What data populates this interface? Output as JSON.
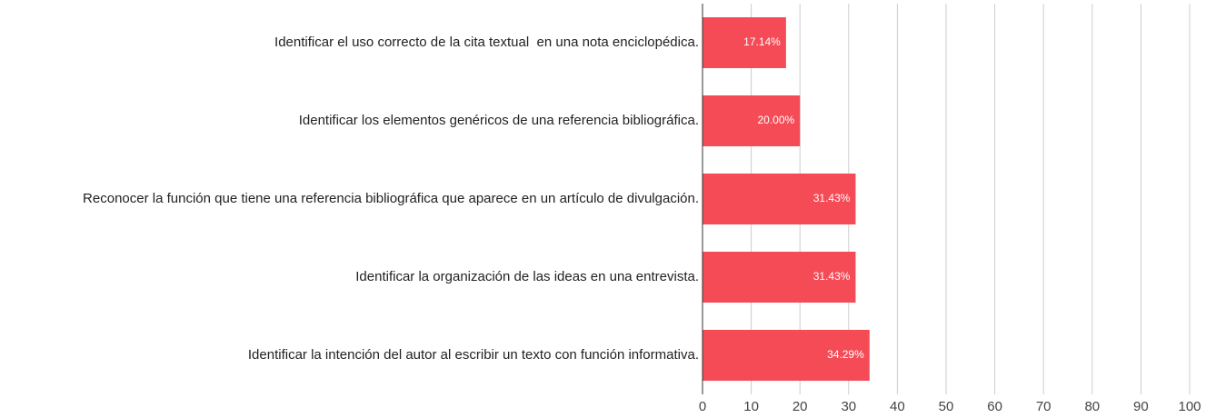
{
  "chart_data": {
    "type": "bar",
    "orientation": "horizontal",
    "categories": [
      "Identificar el uso correcto de la cita textual  en una nota enciclopédica.",
      "Identificar los elementos genéricos de una referencia bibliográfica.",
      "Reconocer la función que tiene una referencia bibliográfica que aparece en un artículo de divulgación.",
      "Identificar la organización de las ideas en una entrevista.",
      "Identificar la intención del autor al escribir un texto con función informativa."
    ],
    "values": [
      17.14,
      20.0,
      31.43,
      31.43,
      34.29
    ],
    "value_labels": [
      "17.14%",
      "20.00%",
      "31.43%",
      "31.43%",
      "34.29%"
    ],
    "color": "#f44b56",
    "xlim": [
      0,
      100
    ],
    "xticks": [
      0,
      10,
      20,
      30,
      40,
      50,
      60,
      70,
      80,
      90,
      100
    ],
    "grid": true
  }
}
